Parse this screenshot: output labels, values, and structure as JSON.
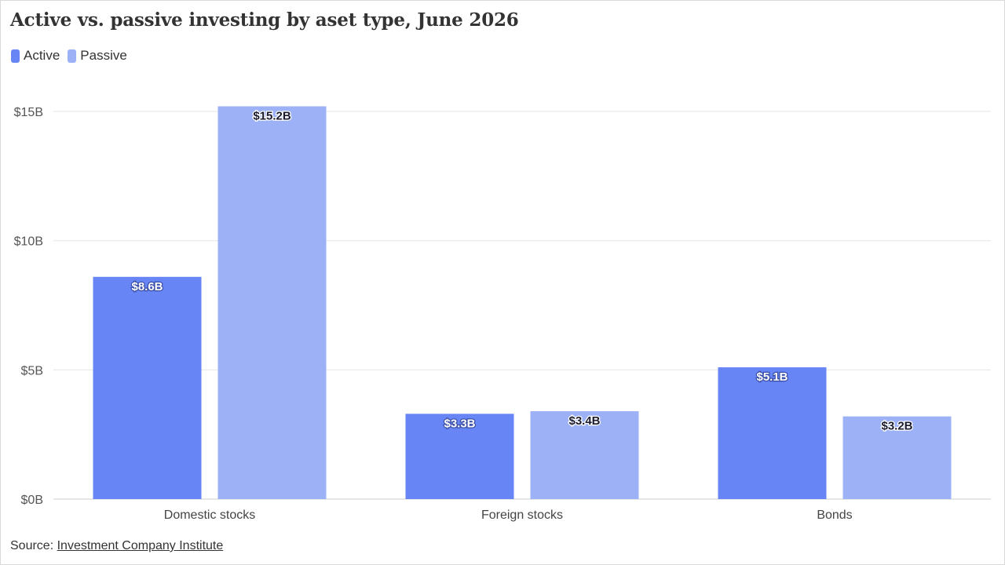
{
  "title": "Active vs. passive investing by aset type, June 2026",
  "legend": {
    "items": [
      {
        "label": "Active",
        "color": "#6885f5"
      },
      {
        "label": "Passive",
        "color": "#9db1f7"
      }
    ]
  },
  "source": {
    "prefix": "Source: ",
    "link_text": "Investment Company Institute"
  },
  "chart_data": {
    "type": "bar",
    "title": "Active vs. passive investing by aset type, June 2026",
    "categories": [
      "Domestic stocks",
      "Foreign stocks",
      "Bonds"
    ],
    "series": [
      {
        "name": "Active",
        "values": [
          8.6,
          3.3,
          5.1
        ],
        "labels": [
          "$8.6B",
          "$3.3B",
          "$5.1B"
        ],
        "color": "#6885f5"
      },
      {
        "name": "Passive",
        "values": [
          15.2,
          3.4,
          3.2
        ],
        "labels": [
          "$15.2B",
          "$3.4B",
          "$3.2B"
        ],
        "color": "#9db1f7"
      }
    ],
    "ylim": [
      0,
      15.2
    ],
    "yticks": [
      0,
      5,
      10,
      15
    ],
    "ytick_labels": [
      "$0B",
      "$5B",
      "$10B",
      "$15B"
    ],
    "xlabel": "",
    "ylabel": "",
    "grid": true,
    "legend_position": "top-left"
  }
}
